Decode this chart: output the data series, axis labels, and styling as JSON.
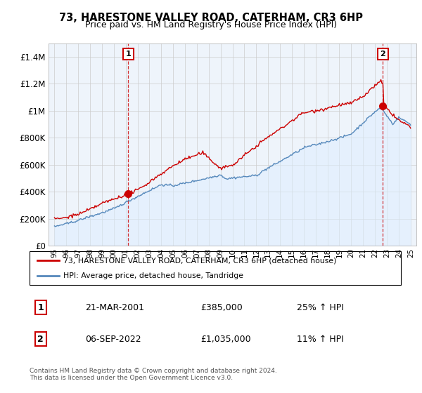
{
  "title": "73, HARESTONE VALLEY ROAD, CATERHAM, CR3 6HP",
  "subtitle": "Price paid vs. HM Land Registry's House Price Index (HPI)",
  "ylim": [
    0,
    1450000
  ],
  "yticks": [
    0,
    200000,
    400000,
    600000,
    800000,
    1000000,
    1200000,
    1400000
  ],
  "ytick_labels": [
    "£0",
    "£200K",
    "£400K",
    "£600K",
    "£800K",
    "£1M",
    "£1.2M",
    "£1.4M"
  ],
  "sale1_year": 2001.22,
  "sale1_price": 385000,
  "sale2_year": 2022.67,
  "sale2_price": 1035000,
  "legend_line1": "73, HARESTONE VALLEY ROAD, CATERHAM, CR3 6HP (detached house)",
  "legend_line2": "HPI: Average price, detached house, Tandridge",
  "table_row1": [
    "1",
    "21-MAR-2001",
    "£385,000",
    "25% ↑ HPI"
  ],
  "table_row2": [
    "2",
    "06-SEP-2022",
    "£1,035,000",
    "11% ↑ HPI"
  ],
  "footnote": "Contains HM Land Registry data © Crown copyright and database right 2024.\nThis data is licensed under the Open Government Licence v3.0.",
  "line_color_red": "#cc0000",
  "line_color_blue": "#5588bb",
  "fill_color_blue": "#ddeeff",
  "grid_color": "#cccccc",
  "bg_color": "#eef4fb",
  "background_color": "#ffffff",
  "box_color_red": "#cc0000"
}
